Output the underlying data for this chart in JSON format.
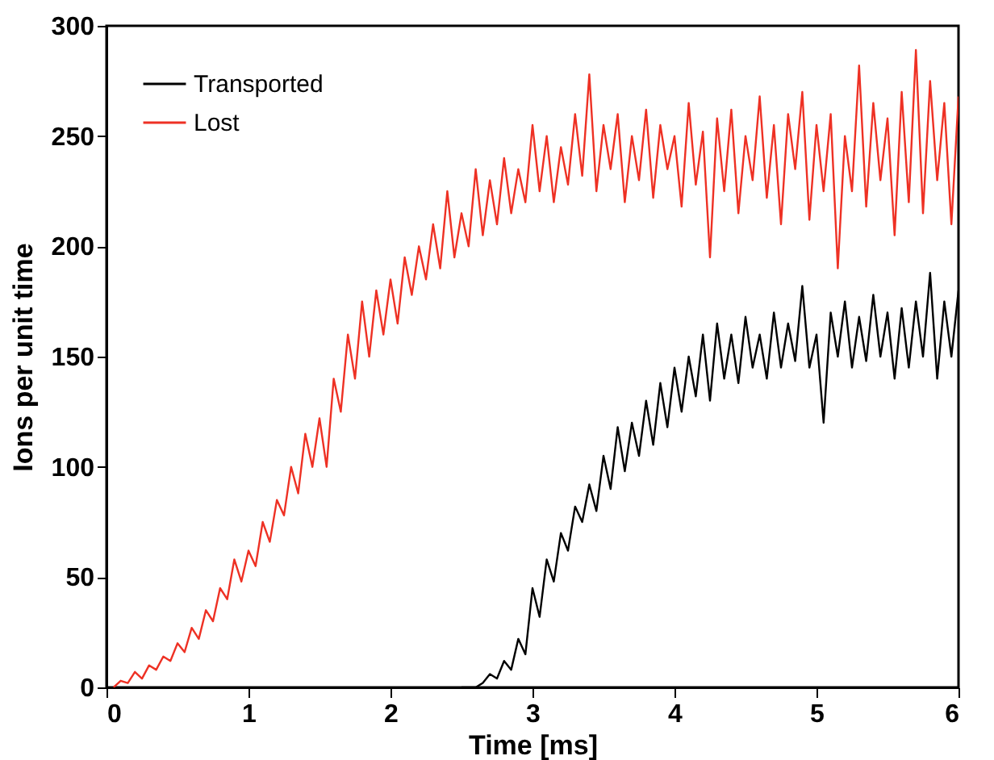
{
  "chart_data": {
    "type": "line",
    "xlabel": "Time [ms]",
    "ylabel": "Ions per unit time",
    "xlim": [
      0,
      6
    ],
    "ylim": [
      0,
      300
    ],
    "xticks": [
      0,
      1,
      2,
      3,
      4,
      5,
      6
    ],
    "yticks": [
      0,
      50,
      100,
      150,
      200,
      250,
      300
    ],
    "grid": false,
    "legend": "top left",
    "line_style": "solid",
    "marker": "none",
    "series": [
      {
        "name": "Transported",
        "color": "#000000",
        "x": [
          2.5,
          2.55,
          2.6,
          2.65,
          2.7,
          2.75,
          2.8,
          2.85,
          2.9,
          2.95,
          3.0,
          3.05,
          3.1,
          3.15,
          3.2,
          3.25,
          3.3,
          3.35,
          3.4,
          3.45,
          3.5,
          3.55,
          3.6,
          3.65,
          3.7,
          3.75,
          3.8,
          3.85,
          3.9,
          3.95,
          4.0,
          4.05,
          4.1,
          4.15,
          4.2,
          4.25,
          4.3,
          4.35,
          4.4,
          4.45,
          4.5,
          4.55,
          4.6,
          4.65,
          4.7,
          4.75,
          4.8,
          4.85,
          4.9,
          4.95,
          5.0,
          5.05,
          5.1,
          5.15,
          5.2,
          5.25,
          5.3,
          5.35,
          5.4,
          5.45,
          5.5,
          5.55,
          5.6,
          5.65,
          5.7,
          5.75,
          5.8,
          5.85,
          5.9,
          5.95,
          6.0
        ],
        "values": [
          0,
          0,
          0,
          2,
          6,
          4,
          12,
          8,
          22,
          15,
          45,
          32,
          58,
          48,
          70,
          62,
          82,
          75,
          92,
          80,
          105,
          90,
          118,
          98,
          120,
          105,
          130,
          110,
          138,
          118,
          145,
          125,
          150,
          132,
          160,
          130,
          165,
          140,
          160,
          138,
          168,
          145,
          160,
          140,
          170,
          145,
          165,
          148,
          182,
          145,
          160,
          120,
          170,
          150,
          175,
          145,
          168,
          148,
          178,
          150,
          170,
          140,
          172,
          145,
          175,
          150,
          188,
          140,
          175,
          150,
          180
        ]
      },
      {
        "name": "Lost",
        "color": "#ee3124",
        "x": [
          0.05,
          0.1,
          0.15,
          0.2,
          0.25,
          0.3,
          0.35,
          0.4,
          0.45,
          0.5,
          0.55,
          0.6,
          0.65,
          0.7,
          0.75,
          0.8,
          0.85,
          0.9,
          0.95,
          1.0,
          1.05,
          1.1,
          1.15,
          1.2,
          1.25,
          1.3,
          1.35,
          1.4,
          1.45,
          1.5,
          1.55,
          1.6,
          1.65,
          1.7,
          1.75,
          1.8,
          1.85,
          1.9,
          1.95,
          2.0,
          2.05,
          2.1,
          2.15,
          2.2,
          2.25,
          2.3,
          2.35,
          2.4,
          2.45,
          2.5,
          2.55,
          2.6,
          2.65,
          2.7,
          2.75,
          2.8,
          2.85,
          2.9,
          2.95,
          3.0,
          3.05,
          3.1,
          3.15,
          3.2,
          3.25,
          3.3,
          3.35,
          3.4,
          3.45,
          3.5,
          3.55,
          3.6,
          3.65,
          3.7,
          3.75,
          3.8,
          3.85,
          3.9,
          3.95,
          4.0,
          4.05,
          4.1,
          4.15,
          4.2,
          4.25,
          4.3,
          4.35,
          4.4,
          4.45,
          4.5,
          4.55,
          4.6,
          4.65,
          4.7,
          4.75,
          4.8,
          4.85,
          4.9,
          4.95,
          5.0,
          5.05,
          5.1,
          5.15,
          5.2,
          5.25,
          5.3,
          5.35,
          5.4,
          5.45,
          5.5,
          5.55,
          5.6,
          5.65,
          5.7,
          5.75,
          5.8,
          5.85,
          5.9,
          5.95,
          6.0
        ],
        "values": [
          0,
          3,
          2,
          7,
          4,
          10,
          8,
          14,
          12,
          20,
          16,
          27,
          22,
          35,
          30,
          45,
          40,
          58,
          48,
          62,
          55,
          75,
          66,
          85,
          78,
          100,
          88,
          115,
          100,
          122,
          100,
          140,
          125,
          160,
          140,
          175,
          150,
          180,
          160,
          185,
          165,
          195,
          178,
          200,
          185,
          210,
          190,
          225,
          195,
          215,
          200,
          235,
          205,
          230,
          210,
          240,
          215,
          235,
          220,
          255,
          225,
          250,
          220,
          245,
          228,
          260,
          232,
          278,
          225,
          255,
          235,
          260,
          220,
          250,
          230,
          262,
          222,
          255,
          235,
          250,
          218,
          265,
          228,
          252,
          195,
          258,
          225,
          262,
          215,
          250,
          230,
          268,
          222,
          255,
          210,
          260,
          235,
          270,
          212,
          255,
          225,
          260,
          190,
          250,
          225,
          282,
          218,
          265,
          230,
          258,
          205,
          270,
          220,
          289,
          215,
          275,
          230,
          265,
          210,
          268
        ]
      }
    ]
  }
}
